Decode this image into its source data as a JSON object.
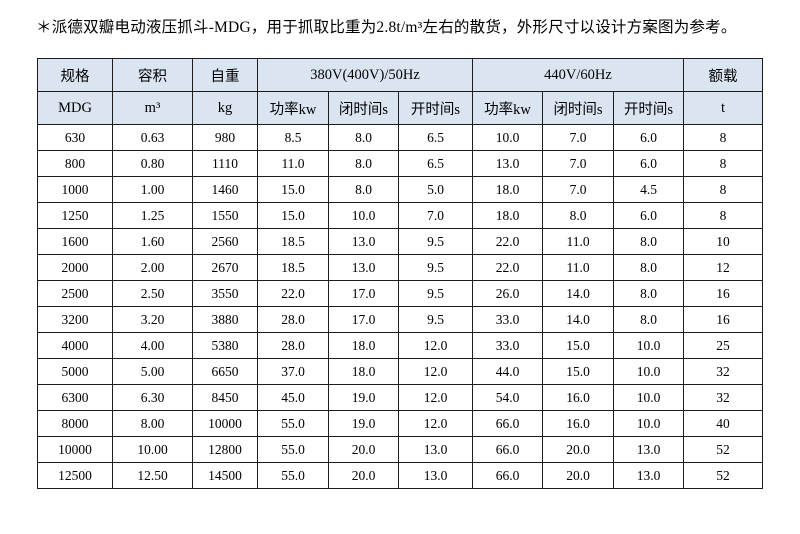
{
  "title": "＊派德双瓣电动液压抓斗-MDG，用于抓取比重为2.8t/m³左右的散货，外形尺寸以设计方案图为参考。",
  "colors": {
    "header_bg": "#dbe5f1",
    "border": "#1c1c1c",
    "text": "#000000",
    "page_bg": "#ffffff"
  },
  "table": {
    "header_row1": [
      {
        "label": "规格",
        "colspan": 1
      },
      {
        "label": "容积",
        "colspan": 1
      },
      {
        "label": "自重",
        "colspan": 1
      },
      {
        "label": "380V(400V)/50Hz",
        "colspan": 3
      },
      {
        "label": "440V/60Hz",
        "colspan": 3
      },
      {
        "label": "额载",
        "colspan": 1
      }
    ],
    "header_row2": [
      "MDG",
      "m³",
      "kg",
      "功率kw",
      "闭时间s",
      "开时间s",
      "功率kw",
      "闭时间s",
      "开时间s",
      "t"
    ],
    "rows": [
      [
        "630",
        "0.63",
        "980",
        "8.5",
        "8.0",
        "6.5",
        "10.0",
        "7.0",
        "6.0",
        "8"
      ],
      [
        "800",
        "0.80",
        "1110",
        "11.0",
        "8.0",
        "6.5",
        "13.0",
        "7.0",
        "6.0",
        "8"
      ],
      [
        "1000",
        "1.00",
        "1460",
        "15.0",
        "8.0",
        "5.0",
        "18.0",
        "7.0",
        "4.5",
        "8"
      ],
      [
        "1250",
        "1.25",
        "1550",
        "15.0",
        "10.0",
        "7.0",
        "18.0",
        "8.0",
        "6.0",
        "8"
      ],
      [
        "1600",
        "1.60",
        "2560",
        "18.5",
        "13.0",
        "9.5",
        "22.0",
        "11.0",
        "8.0",
        "10"
      ],
      [
        "2000",
        "2.00",
        "2670",
        "18.5",
        "13.0",
        "9.5",
        "22.0",
        "11.0",
        "8.0",
        "12"
      ],
      [
        "2500",
        "2.50",
        "3550",
        "22.0",
        "17.0",
        "9.5",
        "26.0",
        "14.0",
        "8.0",
        "16"
      ],
      [
        "3200",
        "3.20",
        "3880",
        "28.0",
        "17.0",
        "9.5",
        "33.0",
        "14.0",
        "8.0",
        "16"
      ],
      [
        "4000",
        "4.00",
        "5380",
        "28.0",
        "18.0",
        "12.0",
        "33.0",
        "15.0",
        "10.0",
        "25"
      ],
      [
        "5000",
        "5.00",
        "6650",
        "37.0",
        "18.0",
        "12.0",
        "44.0",
        "15.0",
        "10.0",
        "32"
      ],
      [
        "6300",
        "6.30",
        "8450",
        "45.0",
        "19.0",
        "12.0",
        "54.0",
        "16.0",
        "10.0",
        "32"
      ],
      [
        "8000",
        "8.00",
        "10000",
        "55.0",
        "19.0",
        "12.0",
        "66.0",
        "16.0",
        "10.0",
        "40"
      ],
      [
        "10000",
        "10.00",
        "12800",
        "55.0",
        "20.0",
        "13.0",
        "66.0",
        "20.0",
        "13.0",
        "52"
      ],
      [
        "12500",
        "12.50",
        "14500",
        "55.0",
        "20.0",
        "13.0",
        "66.0",
        "20.0",
        "13.0",
        "52"
      ]
    ]
  }
}
